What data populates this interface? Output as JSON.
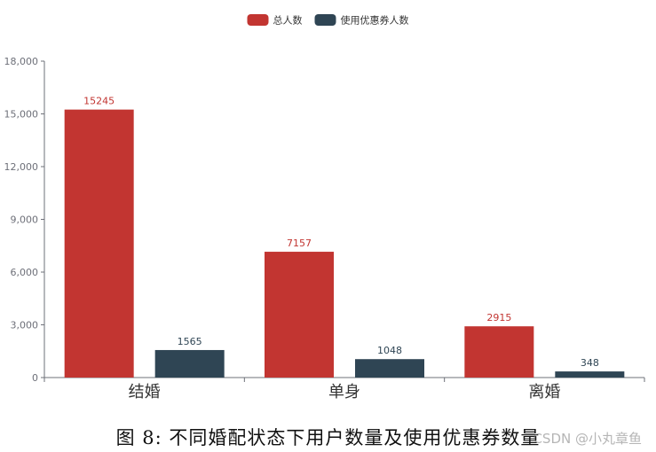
{
  "chart_data": {
    "type": "bar",
    "categories": [
      "结婚",
      "单身",
      "离婚"
    ],
    "series": [
      {
        "name": "总人数",
        "values": [
          15245,
          7157,
          2915
        ],
        "color": "#c23531"
      },
      {
        "name": "使用优惠券人数",
        "values": [
          1565,
          1048,
          348
        ],
        "color": "#2f4554"
      }
    ],
    "ylim": [
      0,
      18000
    ],
    "yticks": [
      0,
      3000,
      6000,
      9000,
      12000,
      15000,
      18000
    ],
    "ytick_labels": [
      "0",
      "3,000",
      "6,000",
      "9,000",
      "12,000",
      "15,000",
      "18,000"
    ],
    "data_labels": true,
    "legend_position": "top-center",
    "grid": false
  },
  "caption": "图 8: 不同婚配状态下用户数量及使用优惠券数量",
  "watermark": "CSDN @小丸章鱼"
}
